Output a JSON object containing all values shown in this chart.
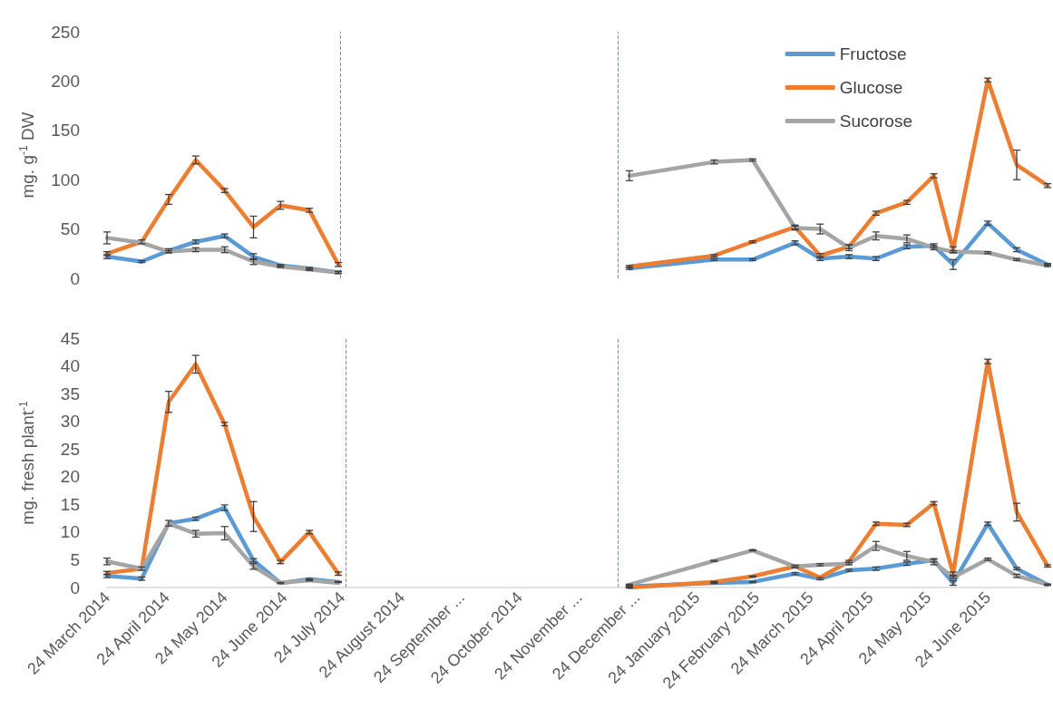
{
  "chart_data": [
    {
      "type": "line",
      "ylabel": "mg. g$^{-1}$ DW",
      "legend": "top right",
      "grid": false,
      "tick_labels": "y",
      "line_style": "solid",
      "x": [
        "2014-03-24",
        "2014-04-11",
        "2014-04-25",
        "2014-05-09",
        "2014-05-24",
        "2014-06-08",
        "2014-06-22",
        "2014-07-07",
        "2014-07-22",
        "2014-10-15",
        "2014-12-20",
        "2015-02-02",
        "2015-02-22",
        "2015-03-16",
        "2015-03-29",
        "2015-04-13",
        "2015-04-27",
        "2015-05-13",
        "2015-05-27",
        "2015-06-06",
        "2015-06-24",
        "2015-07-09",
        "2015-07-25"
      ],
      "xlim": [
        "2014-03-24",
        "2015-07-25"
      ],
      "ylim": [
        0,
        250
      ],
      "yticks": [
        0,
        50,
        100,
        150,
        200,
        250
      ],
      "ref_lines": [
        {
          "axis": "x",
          "value": "2014-07-23",
          "color": "#5b9bd5",
          "line_style": "dashed"
        },
        {
          "axis": "x",
          "value": "2014-12-14",
          "color": "#5b9bd5",
          "line_style": "dashed"
        }
      ],
      "series": [
        {
          "name": "Fructose",
          "color": "#5b9bd5",
          "values": [
            22,
            17,
            28,
            37,
            43,
            22,
            13,
            10,
            6,
            null,
            10,
            19,
            19,
            36,
            20,
            22,
            20,
            32,
            33,
            14,
            56,
            29,
            14
          ],
          "errors": [
            2,
            1,
            2,
            2,
            2,
            3,
            1,
            1,
            1,
            null,
            1,
            1,
            1,
            2,
            2,
            2,
            2,
            2,
            2,
            5,
            2,
            2,
            1
          ]
        },
        {
          "name": "Glucose",
          "color": "#ed7d31",
          "values": [
            25,
            37,
            80,
            120,
            89,
            52,
            74,
            69,
            14,
            null,
            12,
            23,
            37,
            52,
            23,
            32,
            66,
            77,
            104,
            29,
            201,
            115,
            94
          ],
          "errors": [
            2,
            2,
            5,
            4,
            2,
            11,
            4,
            2,
            2,
            null,
            1,
            1,
            1,
            2,
            2,
            2,
            2,
            2,
            2,
            3,
            2,
            15,
            2
          ]
        },
        {
          "name": "Sucorose",
          "color": "#a5a5a5",
          "values": [
            41,
            36,
            27,
            29,
            29,
            17,
            12,
            9,
            6,
            null,
            104,
            118,
            120,
            51,
            50,
            31,
            43,
            40,
            31,
            27,
            26,
            19,
            13
          ],
          "errors": [
            6,
            null,
            1,
            2,
            3,
            3,
            1,
            1,
            1,
            null,
            5,
            2,
            1,
            2,
            5,
            3,
            4,
            4,
            2,
            1,
            1,
            1,
            1
          ]
        }
      ]
    },
    {
      "type": "line",
      "ylabel": "mg. fresh plant$^{-1}$",
      "grid": false,
      "line_style": "solid",
      "x": [
        "2014-03-24",
        "2014-04-11",
        "2014-04-25",
        "2014-05-09",
        "2014-05-24",
        "2014-06-08",
        "2014-06-22",
        "2014-07-07",
        "2014-07-22",
        "2014-10-15",
        "2014-12-20",
        "2015-02-02",
        "2015-02-22",
        "2015-03-16",
        "2015-03-29",
        "2015-04-13",
        "2015-04-27",
        "2015-05-13",
        "2015-05-27",
        "2015-06-06",
        "2015-06-24",
        "2015-07-09",
        "2015-07-25"
      ],
      "xlim": [
        "2014-03-24",
        "2015-07-25"
      ],
      "xticks": [
        {
          "value": "2014-03-24",
          "label": "24 March 2014"
        },
        {
          "value": "2014-04-24",
          "label": "24 April 2014"
        },
        {
          "value": "2014-05-24",
          "label": "24 May 2014"
        },
        {
          "value": "2014-06-24",
          "label": "24 June 2014"
        },
        {
          "value": "2014-07-24",
          "label": "24 July 2014"
        },
        {
          "value": "2014-08-24",
          "label": "24 August 2014"
        },
        {
          "value": "2014-09-24",
          "label": "24 September ..."
        },
        {
          "value": "2014-10-24",
          "label": "24 October 2014"
        },
        {
          "value": "2014-11-24",
          "label": "24 November ..."
        },
        {
          "value": "2014-12-24",
          "label": "24 December ..."
        },
        {
          "value": "2015-01-24",
          "label": "24 January 2015"
        },
        {
          "value": "2015-02-24",
          "label": "24 February 2015"
        },
        {
          "value": "2015-03-24",
          "label": "24 March 2015"
        },
        {
          "value": "2015-04-24",
          "label": "24 April 2015"
        },
        {
          "value": "2015-05-24",
          "label": "24 May 2015"
        },
        {
          "value": "2015-06-24",
          "label": "24 June 2015"
        }
      ],
      "ylim": [
        0,
        45
      ],
      "yticks": [
        0,
        5,
        10,
        15,
        20,
        25,
        30,
        35,
        40,
        45
      ],
      "ref_lines": [
        {
          "axis": "x",
          "value": "2014-07-26",
          "color": "#5b9bd5",
          "line_style": "dashed"
        },
        {
          "axis": "x",
          "value": "2014-12-14",
          "color": "#5b9bd5",
          "line_style": "dashed"
        }
      ],
      "series": [
        {
          "color": "#5b9bd5",
          "values": [
            2.1,
            1.6,
            11.6,
            12.4,
            14.4,
            4.9,
            0.8,
            1.5,
            1.0,
            null,
            0.2,
            0.8,
            1.0,
            2.5,
            1.6,
            3.1,
            3.4,
            4.3,
            4.9,
            0.8,
            11.5,
            3.4,
            0.5
          ],
          "errors": [
            0.3,
            0.3,
            0.5,
            0.3,
            0.5,
            0.3,
            0.1,
            0.1,
            0.1,
            null,
            0.1,
            0.1,
            0.1,
            0.2,
            0.2,
            0.2,
            0.3,
            0.3,
            0.3,
            0.4,
            0.3,
            0.2,
            0.1
          ]
        },
        {
          "color": "#ed7d31",
          "values": [
            2.6,
            3.4,
            33.5,
            40.3,
            29.5,
            12.8,
            4.6,
            10,
            2.5,
            null,
            0,
            1.0,
            2.0,
            3.8,
            1.8,
            4.7,
            11.5,
            11.3,
            15.2,
            2.5,
            40.8,
            13.6,
            3.9
          ],
          "errors": [
            0.3,
            0.3,
            1.9,
            1.6,
            0.3,
            2.7,
            0.3,
            0.3,
            0.3,
            null,
            0.1,
            0.1,
            0.1,
            0.2,
            null,
            0.2,
            0.3,
            0.3,
            0.3,
            0.3,
            0.4,
            1.6,
            0.2
          ]
        },
        {
          "color": "#a5a5a5",
          "values": [
            4.7,
            3.4,
            11.5,
            9.7,
            9.8,
            3.8,
            0.8,
            1.3,
            0.8,
            null,
            0.5,
            4.8,
            6.7,
            3.8,
            4.1,
            4.3,
            7.5,
            5.7,
            4.6,
            1.8,
            5.1,
            2.1,
            0.5
          ],
          "errors": [
            0.6,
            null,
            null,
            0.6,
            1.2,
            0.5,
            null,
            0.1,
            null,
            null,
            0.1,
            0.1,
            0.1,
            0.2,
            0.2,
            0.2,
            0.8,
            0.8,
            0.5,
            0.2,
            0.2,
            0.3,
            0.1
          ]
        }
      ]
    }
  ]
}
